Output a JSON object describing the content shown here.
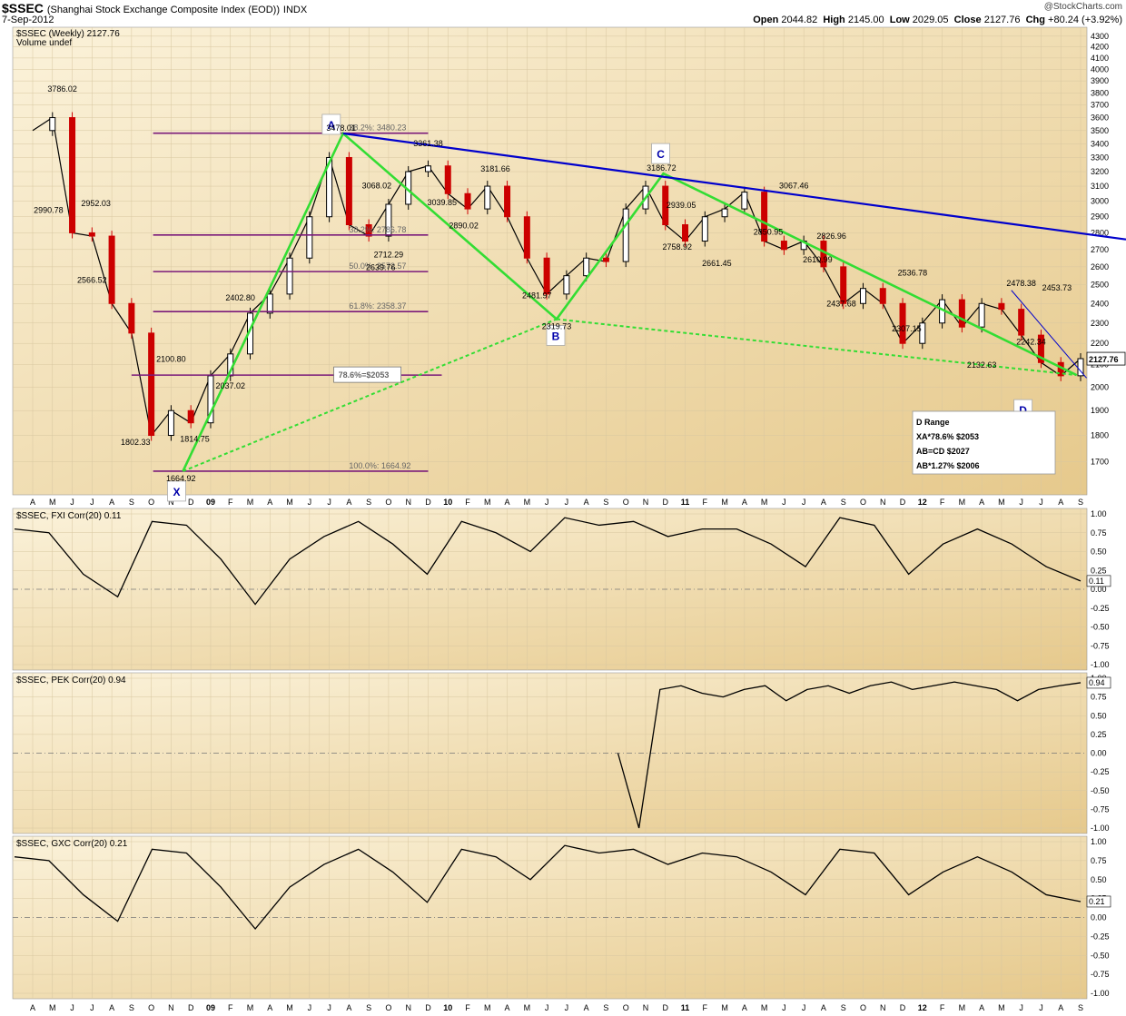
{
  "header": {
    "symbol": "$SSEC",
    "description": "(Shanghai Stock Exchange Composite Index (EOD))",
    "exchange": "INDX",
    "date": "7-Sep-2012",
    "brand": "@StockCharts.com",
    "open_label": "Open",
    "open": "2044.82",
    "high_label": "High",
    "high": "2145.00",
    "low_label": "Low",
    "low": "2029.05",
    "close_label": "Close",
    "close": "2127.76",
    "chg_label": "Chg",
    "chg": "+80.24 (+3.92%)"
  },
  "colors": {
    "background": "#f3e1b6",
    "up": "#000000",
    "down": "#cc0000",
    "pattern": "#33dd33",
    "trend": "#0000cc",
    "fib": "#7a1a7a",
    "box_text": "#0000cc"
  },
  "x_axis": {
    "months": [
      "A",
      "M",
      "J",
      "J",
      "A",
      "S",
      "O",
      "N",
      "D",
      "09",
      "F",
      "M",
      "A",
      "M",
      "J",
      "J",
      "A",
      "S",
      "O",
      "N",
      "D",
      "10",
      "F",
      "M",
      "A",
      "M",
      "J",
      "J",
      "A",
      "S",
      "O",
      "N",
      "D",
      "11",
      "F",
      "M",
      "A",
      "M",
      "J",
      "J",
      "A",
      "S",
      "O",
      "N",
      "D",
      "12",
      "F",
      "M",
      "A",
      "M",
      "J",
      "J",
      "A",
      "S"
    ],
    "year_labels": [
      "09",
      "10",
      "11",
      "12"
    ]
  },
  "panels": {
    "price": {
      "title": "$SSEC (Weekly) 2127.76",
      "subtitle": "Volume undef",
      "ticks": [
        4300,
        4200,
        4100,
        4000,
        3900,
        3800,
        3700,
        3600,
        3500,
        3400,
        3300,
        3200,
        3100,
        3000,
        2900,
        2800,
        2700,
        2600,
        2500,
        2400,
        2300,
        2200,
        2100,
        2000,
        1900,
        1800,
        1700
      ],
      "last": "2127.76"
    },
    "fxi": {
      "title": "$SSEC, FXI Corr(20) 0.11",
      "last": "0.11"
    },
    "pek": {
      "title": "$SSEC, PEK Corr(20) 0.94",
      "last": "0.94"
    },
    "gxc": {
      "title": "$SSEC, GXC Corr(20) 0.21",
      "last": "0.21"
    },
    "corr_ticks": [
      "1.00",
      "0.75",
      "0.50",
      "0.25",
      "0.00",
      "-0.25",
      "-0.50",
      "-0.75",
      "-1.00"
    ]
  },
  "pattern_points": [
    {
      "label": "X",
      "price": 1664.92
    },
    {
      "label": "A",
      "price": 3478.01
    },
    {
      "label": "B",
      "price": 2319.73
    },
    {
      "label": "C",
      "price": 3186.72
    },
    {
      "label": "D",
      "price": 2053
    }
  ],
  "fib_levels": [
    {
      "text": "38.2%: 3480.23",
      "price": 3480
    },
    {
      "text": "38.2%: 2786.78",
      "price": 2787
    },
    {
      "text": "50.0%: 2572.57",
      "price": 2573
    },
    {
      "text": "61.8%: 2358.37",
      "price": 2358
    },
    {
      "text": "78.6%=$2053",
      "price": 2053
    },
    {
      "text": "100.0%: 1664.92",
      "price": 1665
    }
  ],
  "d_range": {
    "title": "D Range",
    "lines": [
      "XA*78.6% $2053",
      "AB=CD $2027",
      "AB*1.27% $2006"
    ]
  },
  "annotations": [
    "3786.02",
    "2990.78",
    "2952.03",
    "2566.52",
    "1802.33",
    "2100.80",
    "1664.92",
    "1814.75",
    "2037.02",
    "2402.80",
    "3478.01",
    "3068.02",
    "2712.29",
    "2639.76",
    "3361.38",
    "3039.85",
    "2890.02",
    "3181.66",
    "2481.97",
    "2319.73",
    "3186.72",
    "2939.05",
    "2758.92",
    "2661.45",
    "2850.95",
    "3067.46",
    "2826.96",
    "2610.99",
    "2437.68",
    "2536.78",
    "2307.15",
    "2132.63",
    "2478.38",
    "2242.34",
    "2453.73"
  ],
  "chart_data": [
    {
      "type": "line",
      "title": "$SSEC (Weekly) 2127.76",
      "note_series": "weekly close",
      "ylim": [
        1600,
        4350
      ],
      "log_scale": true,
      "grid": true,
      "x_range": [
        "2008-04",
        "2012-09"
      ],
      "series": [
        {
          "name": "$SSEC",
          "x": [
            "2008-04",
            "2008-05",
            "2008-06",
            "2008-07",
            "2008-08",
            "2008-09",
            "2008-10",
            "2008-11",
            "2008-12",
            "2009-01",
            "2009-02",
            "2009-03",
            "2009-04",
            "2009-05",
            "2009-06",
            "2009-07",
            "2009-08",
            "2009-09",
            "2009-10",
            "2009-11",
            "2009-12",
            "2010-01",
            "2010-02",
            "2010-03",
            "2010-04",
            "2010-05",
            "2010-06",
            "2010-07",
            "2010-08",
            "2010-09",
            "2010-10",
            "2010-11",
            "2010-12",
            "2011-01",
            "2011-02",
            "2011-03",
            "2011-04",
            "2011-05",
            "2011-06",
            "2011-07",
            "2011-08",
            "2011-09",
            "2011-10",
            "2011-11",
            "2011-12",
            "2012-01",
            "2012-02",
            "2012-03",
            "2012-04",
            "2012-05",
            "2012-06",
            "2012-07",
            "2012-08",
            "2012-09"
          ],
          "values": [
            3500,
            3600,
            2800,
            2780,
            2400,
            2250,
            1800,
            1900,
            1850,
            2050,
            2150,
            2350,
            2450,
            2650,
            2900,
            3300,
            2850,
            2780,
            2980,
            3200,
            3240,
            3050,
            2950,
            3100,
            2900,
            2650,
            2450,
            2550,
            2650,
            2630,
            2950,
            3100,
            2850,
            2750,
            2900,
            2950,
            3060,
            2750,
            2700,
            2750,
            2600,
            2400,
            2480,
            2400,
            2200,
            2300,
            2420,
            2280,
            2400,
            2370,
            2240,
            2110,
            2050,
            2128
          ]
        }
      ]
    },
    {
      "type": "line",
      "title": "$SSEC, FXI Corr(20) 0.11",
      "ylim": [
        -1,
        1
      ],
      "series": [
        {
          "name": "FXI Corr(20)",
          "values": [
            0.8,
            0.75,
            0.2,
            -0.1,
            0.9,
            0.85,
            0.4,
            -0.2,
            0.4,
            0.7,
            0.9,
            0.6,
            0.2,
            0.9,
            0.75,
            0.5,
            0.95,
            0.85,
            0.9,
            0.7,
            0.8,
            0.8,
            0.6,
            0.3,
            0.95,
            0.85,
            0.2,
            0.6,
            0.8,
            0.6,
            0.3,
            0.11
          ]
        }
      ]
    },
    {
      "type": "line",
      "title": "$SSEC, PEK Corr(20) 0.94",
      "ylim": [
        -1,
        1
      ],
      "series": [
        {
          "name": "PEK Corr(20)",
          "values": [
            0.0,
            -1.0,
            0.85,
            0.9,
            0.8,
            0.75,
            0.85,
            0.9,
            0.7,
            0.85,
            0.9,
            0.8,
            0.9,
            0.95,
            0.85,
            0.9,
            0.95,
            0.9,
            0.85,
            0.7,
            0.85,
            0.9,
            0.94
          ]
        }
      ]
    },
    {
      "type": "line",
      "title": "$SSEC, GXC Corr(20) 0.21",
      "ylim": [
        -1,
        1
      ],
      "series": [
        {
          "name": "GXC Corr(20)",
          "values": [
            0.8,
            0.75,
            0.3,
            -0.05,
            0.9,
            0.85,
            0.4,
            -0.15,
            0.4,
            0.7,
            0.9,
            0.6,
            0.2,
            0.9,
            0.8,
            0.5,
            0.95,
            0.85,
            0.9,
            0.7,
            0.85,
            0.8,
            0.6,
            0.3,
            0.9,
            0.85,
            0.3,
            0.6,
            0.8,
            0.6,
            0.3,
            0.21
          ]
        }
      ]
    }
  ]
}
